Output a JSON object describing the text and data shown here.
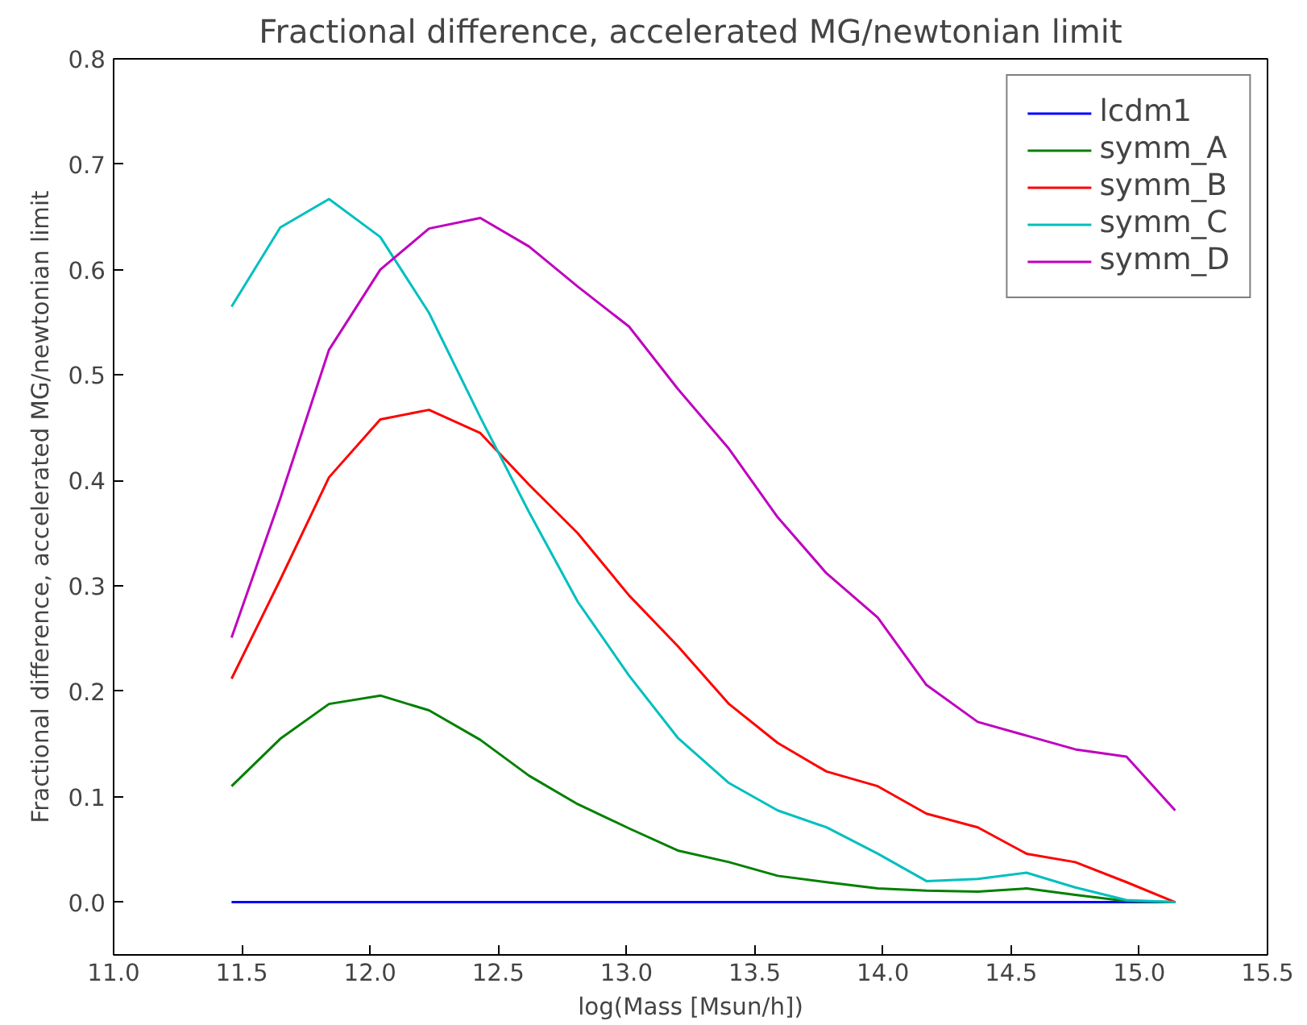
{
  "chart_data": {
    "type": "line",
    "title": "Fractional difference, accelerated MG/newtonian limit",
    "xlabel": "log(Mass [Msun/h])",
    "ylabel": "Fractional difference, accelerated MG/newtonian limit",
    "x": [
      11.46,
      11.65,
      11.84,
      12.04,
      12.23,
      12.43,
      12.62,
      12.81,
      13.01,
      13.2,
      13.4,
      13.59,
      13.78,
      13.98,
      14.17,
      14.37,
      14.56,
      14.75,
      14.95,
      15.14
    ],
    "series": [
      {
        "name": "lcdm1",
        "color": "#0000ff",
        "values": [
          0,
          0,
          0,
          0,
          0,
          0,
          0,
          0,
          0,
          0,
          0,
          0,
          0,
          0,
          0,
          0,
          0,
          0,
          0,
          0
        ]
      },
      {
        "name": "symm_A",
        "color": "#008000",
        "values": [
          0.11,
          0.155,
          0.188,
          0.196,
          0.182,
          0.154,
          0.12,
          0.093,
          0.07,
          0.049,
          0.038,
          0.025,
          0.019,
          0.013,
          0.011,
          0.01,
          0.013,
          0.007,
          0.001,
          0.0
        ]
      },
      {
        "name": "symm_B",
        "color": "#ff0000",
        "values": [
          0.212,
          0.306,
          0.403,
          0.458,
          0.467,
          0.445,
          0.396,
          0.35,
          0.291,
          0.243,
          0.188,
          0.151,
          0.124,
          0.11,
          0.084,
          0.071,
          0.046,
          0.038,
          0.019,
          0.0
        ]
      },
      {
        "name": "symm_C",
        "color": "#00bfbf",
        "values": [
          0.565,
          0.64,
          0.667,
          0.631,
          0.559,
          0.46,
          0.37,
          0.285,
          0.215,
          0.156,
          0.113,
          0.087,
          0.071,
          0.046,
          0.02,
          0.022,
          0.028,
          0.014,
          0.002,
          0.0
        ]
      },
      {
        "name": "symm_D",
        "color": "#bf00bf",
        "values": [
          0.251,
          0.383,
          0.524,
          0.6,
          0.639,
          0.649,
          0.622,
          0.584,
          0.546,
          0.487,
          0.43,
          0.365,
          0.312,
          0.27,
          0.206,
          0.171,
          0.158,
          0.145,
          0.138,
          0.087
        ]
      }
    ],
    "xlim": [
      11.0,
      15.5
    ],
    "xticks": [
      {
        "value": 11.0,
        "label": "11.0"
      },
      {
        "value": 11.5,
        "label": "11.5"
      },
      {
        "value": 12.0,
        "label": "12.0"
      },
      {
        "value": 12.5,
        "label": "12.5"
      },
      {
        "value": 13.0,
        "label": "13.0"
      },
      {
        "value": 13.5,
        "label": "13.5"
      },
      {
        "value": 14.0,
        "label": "14.0"
      },
      {
        "value": 14.5,
        "label": "14.5"
      },
      {
        "value": 15.0,
        "label": "15.0"
      },
      {
        "value": 15.5,
        "label": "15.5"
      }
    ],
    "ylim": [
      -0.05,
      0.8
    ],
    "yticks": [
      {
        "value": 0.0,
        "label": "0.0"
      },
      {
        "value": 0.1,
        "label": "0.1"
      },
      {
        "value": 0.2,
        "label": "0.2"
      },
      {
        "value": 0.3,
        "label": "0.3"
      },
      {
        "value": 0.4,
        "label": "0.4"
      },
      {
        "value": 0.5,
        "label": "0.5"
      },
      {
        "value": 0.6,
        "label": "0.6"
      },
      {
        "value": 0.7,
        "label": "0.7"
      },
      {
        "value": 0.8,
        "label": "0.8"
      }
    ],
    "grid": false,
    "legend": "top right",
    "marker": "none",
    "line_style": "solid"
  }
}
